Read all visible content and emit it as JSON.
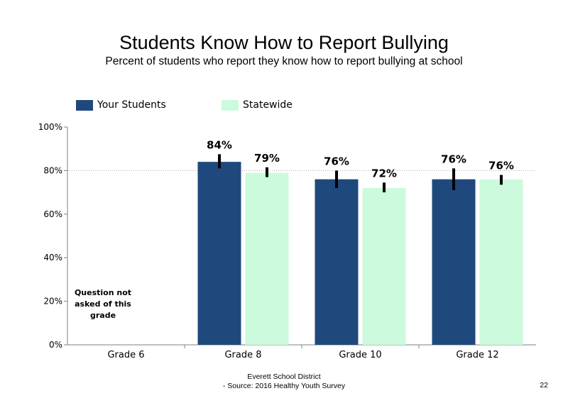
{
  "colors": {
    "your_students": "#1f497d",
    "statewide": "#ccfadc",
    "error_bar": "#000000",
    "axis": "#808080",
    "gridline": "#a6a6a6"
  },
  "chart_data": {
    "type": "bar",
    "title": "Students Know How to Report Bullying",
    "subtitle": "Percent of students  who report they know how to report bullying at school",
    "categories": [
      "Grade 6",
      "Grade 8",
      "Grade 10",
      "Grade 12"
    ],
    "series": [
      {
        "name": "Your Students",
        "values": [
          null,
          84,
          76,
          76
        ],
        "labels": [
          "",
          "84%",
          "76%",
          "76%"
        ],
        "error_low": [
          null,
          81,
          72,
          71
        ],
        "error_high": [
          null,
          87.5,
          80,
          81
        ]
      },
      {
        "name": "Statewide",
        "values": [
          null,
          79,
          72,
          76
        ],
        "labels": [
          "",
          "79%",
          "72%",
          "76%"
        ],
        "error_low": [
          null,
          77,
          70,
          73.5
        ],
        "error_high": [
          null,
          81.5,
          74.5,
          78
        ]
      }
    ],
    "ylim": [
      0,
      100
    ],
    "yticks": [
      0,
      20,
      40,
      60,
      80,
      100
    ],
    "ytick_labels": [
      "0%",
      "20%",
      "40%",
      "60%",
      "80%",
      "100%"
    ],
    "gridlines": [
      80
    ],
    "xlabel": "",
    "ylabel": "",
    "legend_position": "top",
    "annotation": "Question not asked of this grade"
  },
  "footer": {
    "line1": "Everett School District",
    "line2": "- Source: 2016 Healthy  Youth Survey"
  },
  "page_number": "22"
}
